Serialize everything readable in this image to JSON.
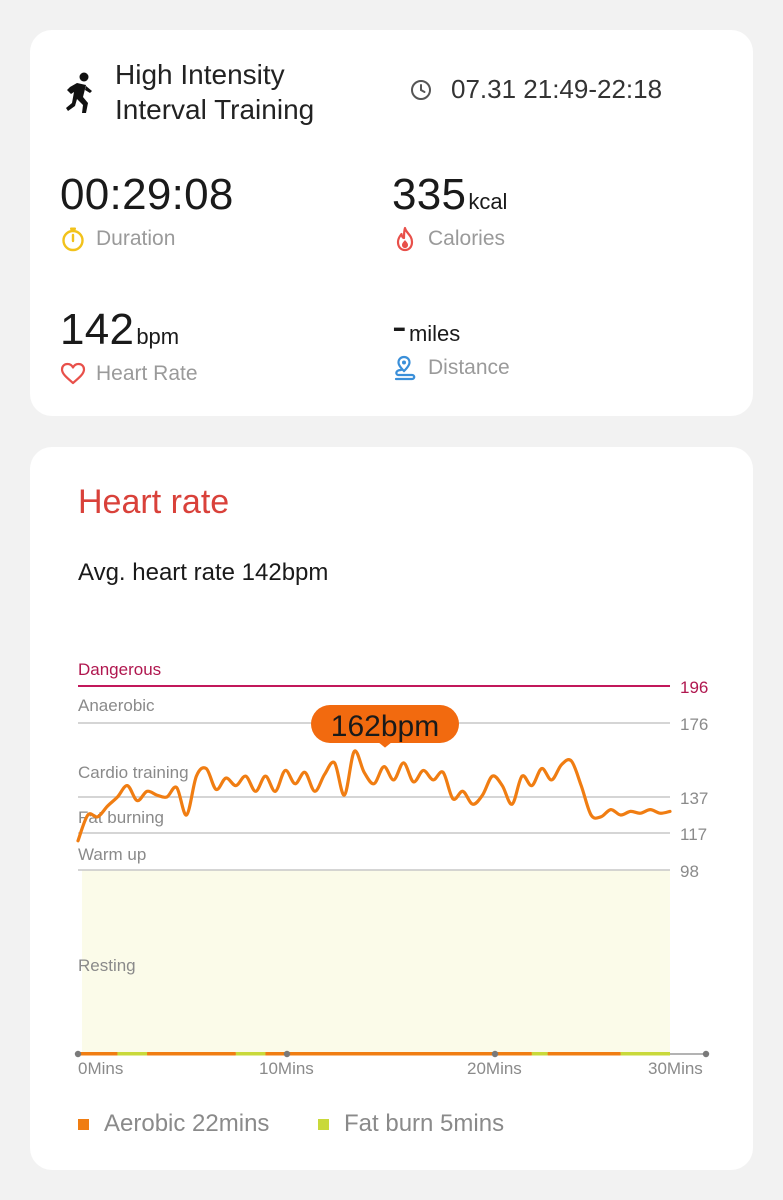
{
  "workout": {
    "title_line1": "High Intensity",
    "title_line2": "Interval Training",
    "time_range": "07.31 21:49-22:18",
    "icon": "running-person-icon"
  },
  "metrics": {
    "duration": {
      "value": "00:29:08",
      "unit": "",
      "label": "Duration",
      "icon": "stopwatch-icon",
      "icon_color": "#f2c21b"
    },
    "calories": {
      "value": "335",
      "unit": "kcal",
      "label": "Calories",
      "icon": "flame-icon",
      "icon_color": "#e8504a"
    },
    "heart_rate": {
      "value": "142",
      "unit": "bpm",
      "label": "Heart Rate",
      "icon": "heart-icon",
      "icon_color": "#e8504a"
    },
    "distance": {
      "value": "-",
      "unit": "miles",
      "label": "Distance",
      "icon": "route-pin-icon",
      "icon_color": "#3a8fd9"
    }
  },
  "heart_rate_section": {
    "title": "Heart rate",
    "avg_text": "Avg. heart rate 142bpm",
    "peak_label": "162bpm"
  },
  "chart_data": {
    "type": "line",
    "x_ticks": [
      "0Mins",
      "10Mins",
      "20Mins",
      "30Mins"
    ],
    "x_tick_values": [
      0,
      10,
      20,
      30
    ],
    "xlim": [
      0,
      30
    ],
    "ylim": [
      0,
      196
    ],
    "zones": [
      {
        "name": "Dangerous",
        "threshold": 196,
        "color": "#c2185b"
      },
      {
        "name": "Anaerobic",
        "threshold": 176,
        "color": "#c7c7c7"
      },
      {
        "name": "Cardio training",
        "threshold": 137,
        "color": "#c7c7c7"
      },
      {
        "name": "Fat burning",
        "threshold": 117,
        "color": "#c7c7c7"
      },
      {
        "name": "Warm up",
        "threshold": 98,
        "color": "#c7c7c7"
      },
      {
        "name": "Resting",
        "threshold": null,
        "color": null
      }
    ],
    "threshold_labels": [
      "196",
      "176",
      "137",
      "117",
      "98"
    ],
    "peak": {
      "x": 14.8,
      "y": 162
    },
    "series": [
      {
        "color": "#f07d12",
        "x": [
          0,
          0.5,
          1,
          1.5,
          2,
          2.5,
          3,
          3.5,
          4,
          4.5,
          5,
          5.5,
          6,
          6.5,
          7,
          7.5,
          8,
          8.5,
          9,
          9.5,
          10,
          10.5,
          11,
          11.5,
          12,
          12.5,
          13,
          13.5,
          14,
          14.5,
          15,
          15.5,
          16,
          16.5,
          17,
          17.5,
          18,
          18.5,
          19,
          19.5,
          20,
          20.5,
          21,
          21.5,
          22,
          22.5,
          23,
          23.5,
          24,
          24.5,
          25,
          25.5,
          26,
          26.5,
          27,
          27.5,
          28,
          28.5,
          29,
          29.5,
          30
        ],
        "y": [
          113,
          127,
          126,
          132,
          137,
          143,
          135,
          140,
          138,
          137,
          142,
          127,
          148,
          152,
          141,
          147,
          143,
          148,
          140,
          148,
          140,
          151,
          144,
          150,
          140,
          149,
          155,
          138,
          161,
          150,
          144,
          153,
          146,
          155,
          145,
          151,
          146,
          150,
          136,
          140,
          133,
          138,
          148,
          143,
          133,
          148,
          143,
          152,
          146,
          154,
          156,
          143,
          127,
          126,
          130,
          127,
          129,
          128,
          130,
          128,
          129
        ]
      }
    ],
    "zone_bar": [
      {
        "from": 0,
        "to": 2,
        "color": "#f07d12"
      },
      {
        "from": 2,
        "to": 3.5,
        "color": "#c9d93a"
      },
      {
        "from": 3.5,
        "to": 8,
        "color": "#f07d12"
      },
      {
        "from": 8,
        "to": 9.5,
        "color": "#c9d93a"
      },
      {
        "from": 9.5,
        "to": 23,
        "color": "#f07d12"
      },
      {
        "from": 23,
        "to": 23.8,
        "color": "#c9d93a"
      },
      {
        "from": 23.8,
        "to": 27.5,
        "color": "#f07d12"
      },
      {
        "from": 27.5,
        "to": 30,
        "color": "#c9d93a"
      }
    ]
  },
  "legend": {
    "aerobic": {
      "label": "Aerobic 22mins",
      "color": "#f07d12"
    },
    "fat_burn": {
      "label": "Fat burn 5mins",
      "color": "#c9d93a"
    }
  }
}
